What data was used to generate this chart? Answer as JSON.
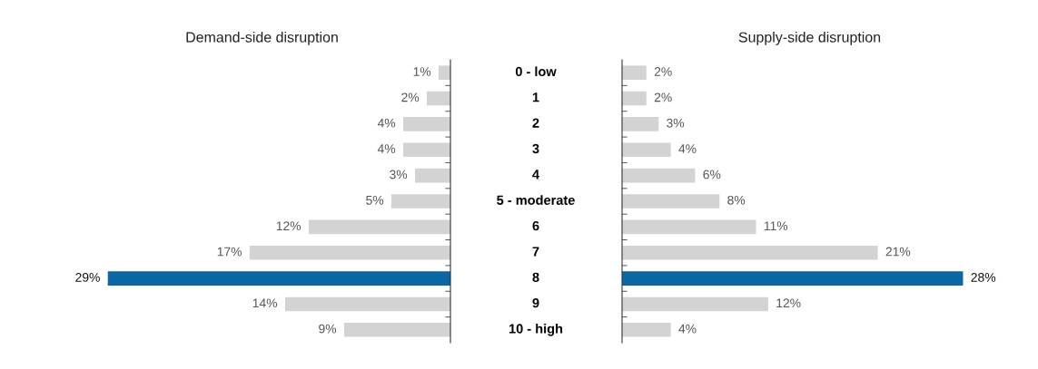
{
  "chart_data": [
    {
      "type": "bar",
      "orientation": "horizontal",
      "title": "Demand-side disruption",
      "categories": [
        "0 - low",
        "1",
        "2",
        "3",
        "4",
        "5 - moderate",
        "6",
        "7",
        "8",
        "9",
        "10 - high"
      ],
      "values": [
        1,
        2,
        4,
        4,
        3,
        5,
        12,
        17,
        29,
        14,
        9
      ],
      "colors": [
        "#d3d3d3",
        "#d3d3d3",
        "#d3d3d3",
        "#d3d3d3",
        "#d3d3d3",
        "#d3d3d3",
        "#d3d3d3",
        "#d3d3d3",
        "#0a67a3",
        "#d3d3d3",
        "#d3d3d3"
      ],
      "value_labels": [
        "1%",
        "2%",
        "4%",
        "4%",
        "3%",
        "5%",
        "12%",
        "17%",
        "29%",
        "14%",
        "9%"
      ],
      "tick_labels": "y",
      "grid": false,
      "legend": false
    },
    {
      "type": "bar",
      "orientation": "horizontal",
      "title": "Supply-side disruption",
      "categories": [
        null,
        null,
        null,
        null,
        null,
        null,
        null,
        null,
        null,
        null,
        null
      ],
      "values": [
        2,
        2,
        3,
        4,
        6,
        8,
        11,
        21,
        28,
        12,
        4
      ],
      "colors": [
        "#d3d3d3",
        "#d3d3d3",
        "#d3d3d3",
        "#d3d3d3",
        "#d3d3d3",
        "#d3d3d3",
        "#d3d3d3",
        "#d3d3d3",
        "#0a67a3",
        "#d3d3d3",
        "#d3d3d3"
      ],
      "value_labels": [
        "2%",
        "2%",
        "3%",
        "4%",
        "6%",
        "8%",
        "11%",
        "21%",
        "28%",
        "12%",
        "4%"
      ],
      "tick_labels": false,
      "grid": false,
      "legend": false
    }
  ]
}
